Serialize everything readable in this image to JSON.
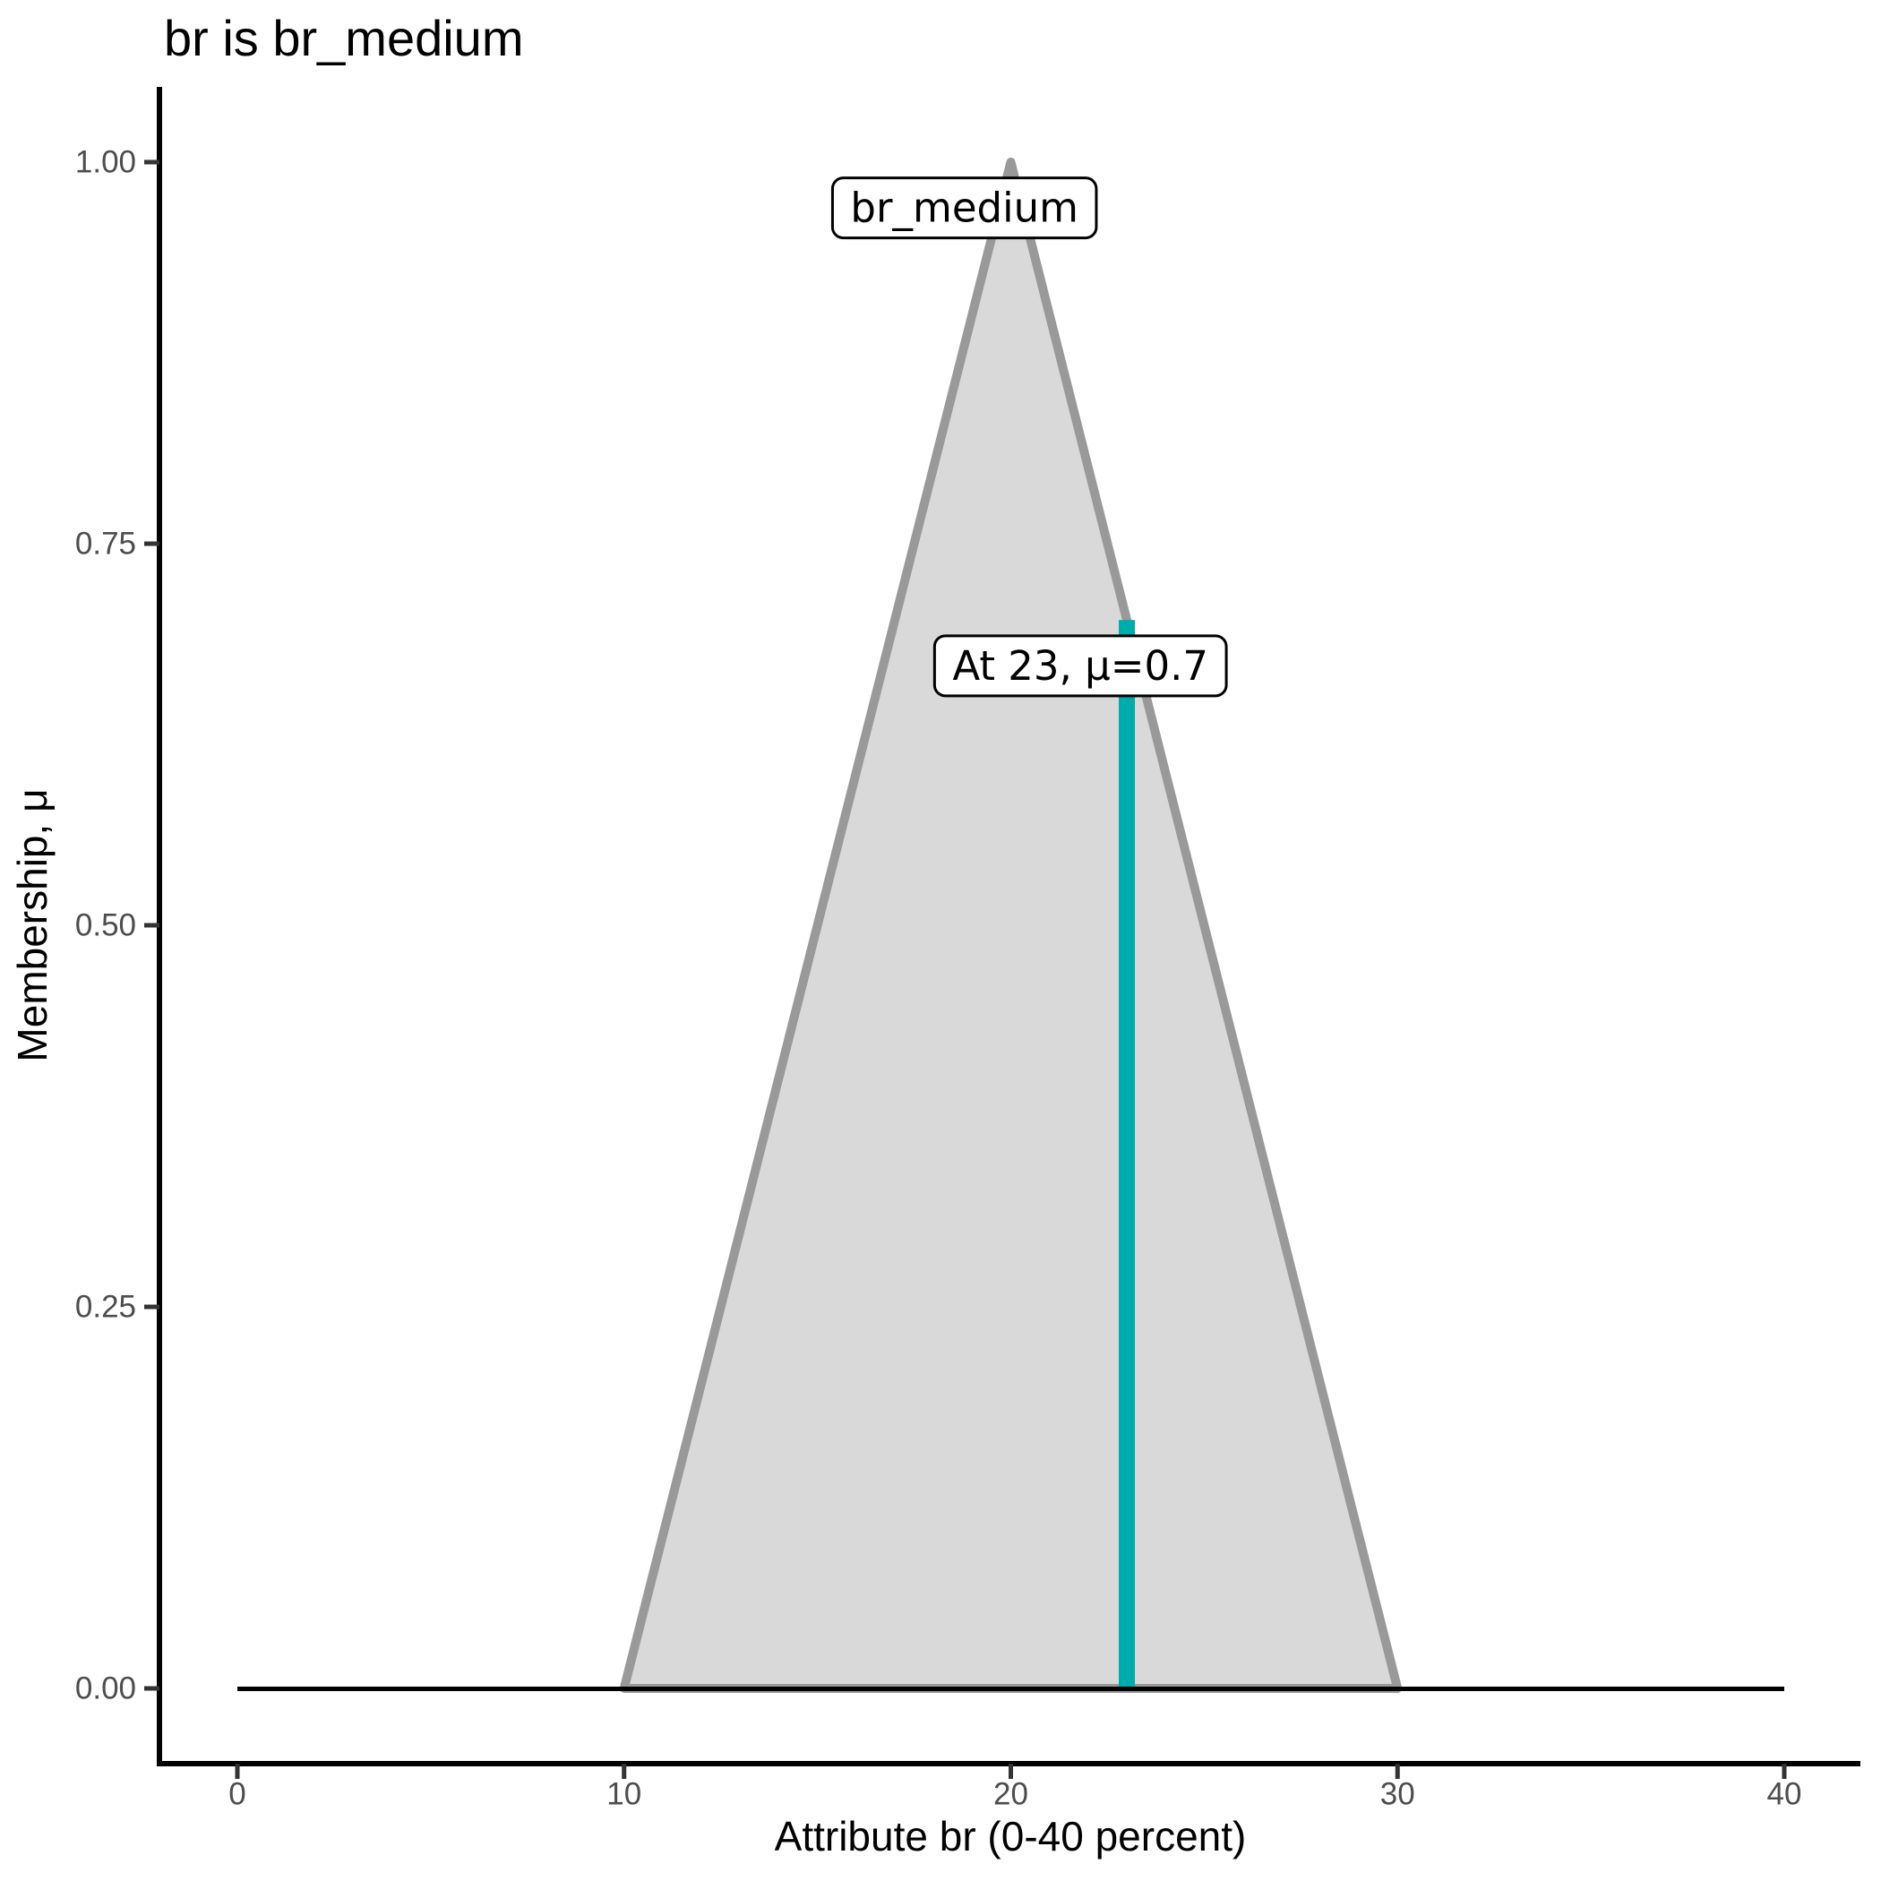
{
  "page": {
    "background": "#FFFFFF"
  },
  "chart_data": {
    "type": "area",
    "title": "br is br_medium",
    "xlabel": "Attribute br (0-40 percent)",
    "ylabel": "Membership, μ",
    "xlim": [
      0,
      40
    ],
    "ylim": [
      0,
      1
    ],
    "grid": false,
    "legend": false,
    "xticks": {
      "values": [
        0,
        10,
        20,
        30,
        40
      ],
      "labels": [
        "0",
        "10",
        "20",
        "30",
        "40"
      ]
    },
    "yticks": {
      "values": [
        0,
        0.25,
        0.5,
        0.75,
        1
      ],
      "labels": [
        "0.00",
        "0.25",
        "0.50",
        "0.75",
        "1.00"
      ]
    },
    "series": [
      {
        "name": "zero-baseline",
        "type": "line",
        "points": [
          [
            0,
            0
          ],
          [
            40,
            0
          ]
        ],
        "color": "#000000",
        "width": 5
      },
      {
        "name": "br_medium",
        "type": "area",
        "points": [
          [
            10,
            0
          ],
          [
            20,
            1
          ],
          [
            30,
            0
          ]
        ],
        "fill": "#D9D9D9",
        "stroke": "#999999",
        "stroke_width": 10
      }
    ],
    "crisp_input": {
      "x": 23,
      "mu": 0.7,
      "color": "#00ABAB",
      "width": 18
    },
    "annotations": [
      {
        "id": "set-label",
        "text": "br_medium",
        "x": 18.8,
        "mu": 0.97,
        "bg": "#FFFFFF",
        "border": "#000000"
      },
      {
        "id": "crisp-label",
        "text": "At 23, μ=0.7",
        "x": 21.8,
        "mu": 0.67,
        "bg": "#FFFFFF",
        "border": "#000000"
      }
    ],
    "colors": {
      "axis": "#000000",
      "tick": "#333333",
      "tick_label": "#4D4D4D",
      "background": "#FFFFFF"
    }
  }
}
